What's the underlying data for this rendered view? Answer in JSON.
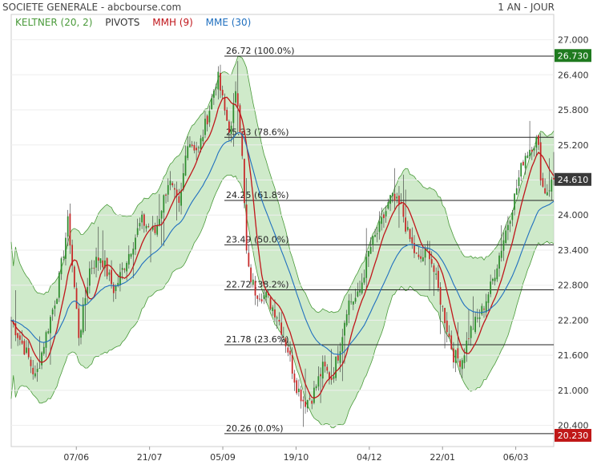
{
  "header": {
    "title": "SOCIETE GENERALE - abcbourse.com",
    "period": "1 AN - JOUR"
  },
  "legend": [
    {
      "label": "KELTNER (20, 2)",
      "color": "#4a9a3a"
    },
    {
      "label": "PIVOTS",
      "color": "#333333"
    },
    {
      "label": "MMH (9)",
      "color": "#c0161b"
    },
    {
      "label": "MME (30)",
      "color": "#1f6fbf"
    }
  ],
  "colors": {
    "band_fill": "#bfe3b8",
    "band_line": "#4a9a3a",
    "up": "#2e8b2e",
    "down": "#c62828",
    "mmh": "#c0161b",
    "mme": "#1f6fbf",
    "tag_green": "#1f7a1f",
    "tag_red": "#c01818",
    "tag_dark": "#3a3a3a"
  },
  "chart_data": {
    "type": "candlestick",
    "ylim": [
      20.23,
      27.2
    ],
    "yticks": [
      "27.000",
      "26.400",
      "25.800",
      "25.200",
      "24.600",
      "24.000",
      "23.400",
      "22.800",
      "22.200",
      "21.600",
      "21.000",
      "20.400"
    ],
    "xticks": [
      {
        "label": "07/06",
        "pos": 0.12
      },
      {
        "label": "21/07",
        "pos": 0.255
      },
      {
        "label": "05/09",
        "pos": 0.39
      },
      {
        "label": "19/10",
        "pos": 0.525
      },
      {
        "label": "04/12",
        "pos": 0.66
      },
      {
        "label": "22/01",
        "pos": 0.795
      },
      {
        "label": "06/03",
        "pos": 0.93
      }
    ],
    "fibonacci": [
      {
        "price": 26.72,
        "label": "26.72  (100.0%)"
      },
      {
        "price": 25.33,
        "label": "25.33  (78.6%)"
      },
      {
        "price": 24.25,
        "label": "24.25  (61.8%)"
      },
      {
        "price": 23.49,
        "label": "23.49  (50.0%)"
      },
      {
        "price": 22.72,
        "label": "22.72  (38.2%)"
      },
      {
        "price": 21.78,
        "label": "21.78  (23.6%)"
      },
      {
        "price": 20.26,
        "label": "20.26  (0.0%)"
      }
    ],
    "price_tags": [
      {
        "value": "26.730",
        "price": 26.73,
        "kind": "green"
      },
      {
        "value": "24.610",
        "price": 24.61,
        "kind": "dark"
      },
      {
        "value": "20.230",
        "price": 20.23,
        "kind": "red"
      }
    ],
    "anchors": [
      [
        0,
        22.2
      ],
      [
        0.03,
        21.6
      ],
      [
        0.045,
        21.2
      ],
      [
        0.06,
        21.8
      ],
      [
        0.085,
        22.7
      ],
      [
        0.105,
        23.9
      ],
      [
        0.115,
        22.9
      ],
      [
        0.125,
        21.9
      ],
      [
        0.145,
        23.1
      ],
      [
        0.165,
        23.3
      ],
      [
        0.19,
        22.7
      ],
      [
        0.215,
        23.3
      ],
      [
        0.24,
        23.9
      ],
      [
        0.265,
        23.7
      ],
      [
        0.29,
        24.6
      ],
      [
        0.31,
        24.1
      ],
      [
        0.325,
        25.3
      ],
      [
        0.345,
        25.1
      ],
      [
        0.365,
        25.8
      ],
      [
        0.38,
        26.4
      ],
      [
        0.395,
        25.7
      ],
      [
        0.405,
        25.4
      ],
      [
        0.415,
        26.3
      ],
      [
        0.425,
        25.1
      ],
      [
        0.435,
        23.1
      ],
      [
        0.45,
        22.7
      ],
      [
        0.47,
        22.6
      ],
      [
        0.49,
        22.3
      ],
      [
        0.51,
        21.7
      ],
      [
        0.525,
        21.1
      ],
      [
        0.54,
        20.8
      ],
      [
        0.555,
        20.9
      ],
      [
        0.575,
        21.4
      ],
      [
        0.59,
        21.2
      ],
      [
        0.605,
        21.7
      ],
      [
        0.62,
        22.5
      ],
      [
        0.64,
        22.6
      ],
      [
        0.66,
        23.4
      ],
      [
        0.68,
        23.8
      ],
      [
        0.7,
        24.3
      ],
      [
        0.72,
        24.1
      ],
      [
        0.73,
        23.7
      ],
      [
        0.75,
        23.2
      ],
      [
        0.77,
        23.4
      ],
      [
        0.785,
        22.8
      ],
      [
        0.8,
        22.2
      ],
      [
        0.815,
        21.6
      ],
      [
        0.83,
        21.5
      ],
      [
        0.845,
        22.0
      ],
      [
        0.865,
        22.3
      ],
      [
        0.885,
        22.8
      ],
      [
        0.905,
        23.5
      ],
      [
        0.925,
        24.2
      ],
      [
        0.945,
        25.0
      ],
      [
        0.96,
        25.2
      ],
      [
        0.97,
        25.3
      ],
      [
        0.978,
        24.5
      ],
      [
        0.986,
        24.4
      ],
      [
        1.0,
        24.61
      ]
    ]
  }
}
